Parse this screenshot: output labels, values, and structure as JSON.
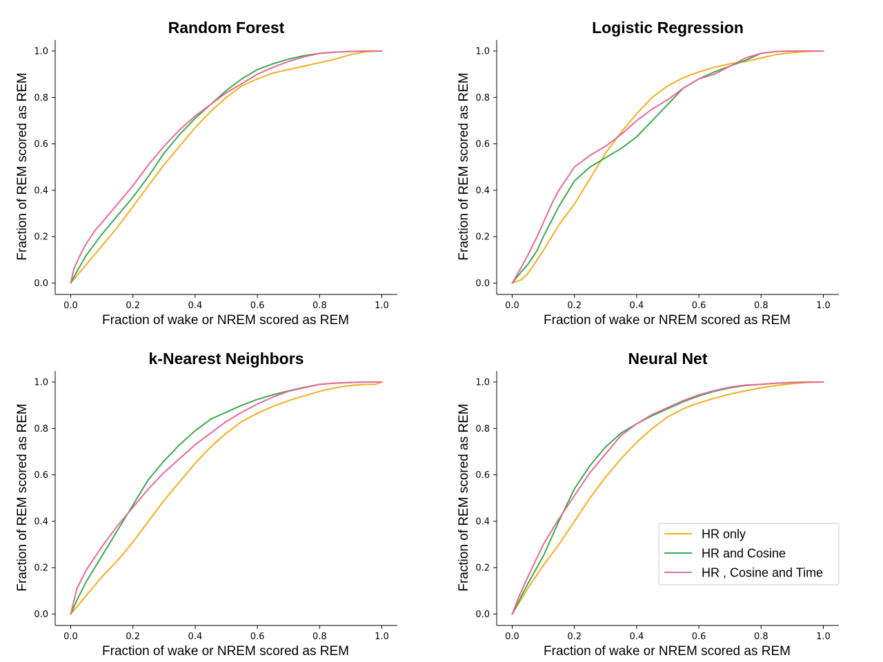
{
  "figure": {
    "background": "#ffffff"
  },
  "colors": {
    "HR only": "#f5ad1b",
    "HR and Cosine": "#3aaa48",
    "HR , Cosine and Time": "#e8689a"
  },
  "legend": {
    "placement": "lower-right of Neural Net panel",
    "entries": [
      "HR only",
      "HR and Cosine",
      "HR , Cosine and Time"
    ]
  },
  "chart_data": [
    {
      "type": "line",
      "title": "Random Forest",
      "xlabel": "Fraction of wake or NREM scored as REM",
      "ylabel": "Fraction of REM scored as REM",
      "xlim": [
        0,
        1
      ],
      "ylim": [
        0,
        1
      ],
      "xticks": [
        "0.0",
        "0.2",
        "0.4",
        "0.6",
        "0.8",
        "1.0"
      ],
      "yticks": [
        "0.0",
        "0.2",
        "0.4",
        "0.6",
        "0.8",
        "1.0"
      ],
      "grid": false,
      "series": [
        {
          "name": "HR only",
          "x": [
            0,
            0.05,
            0.1,
            0.15,
            0.2,
            0.25,
            0.3,
            0.35,
            0.4,
            0.45,
            0.5,
            0.55,
            0.6,
            0.65,
            0.7,
            0.75,
            0.8,
            0.85,
            0.9,
            0.95,
            1.0
          ],
          "y": [
            0,
            0.08,
            0.16,
            0.24,
            0.33,
            0.42,
            0.51,
            0.59,
            0.67,
            0.74,
            0.8,
            0.85,
            0.88,
            0.905,
            0.92,
            0.935,
            0.95,
            0.965,
            0.985,
            0.997,
            1.0
          ]
        },
        {
          "name": "HR and Cosine",
          "x": [
            0,
            0.02,
            0.05,
            0.1,
            0.15,
            0.2,
            0.25,
            0.3,
            0.35,
            0.4,
            0.45,
            0.5,
            0.55,
            0.6,
            0.65,
            0.7,
            0.75,
            0.8,
            0.85,
            0.9,
            0.95,
            1.0
          ],
          "y": [
            0,
            0.05,
            0.12,
            0.21,
            0.29,
            0.37,
            0.46,
            0.56,
            0.64,
            0.71,
            0.77,
            0.83,
            0.88,
            0.92,
            0.945,
            0.965,
            0.98,
            0.99,
            0.995,
            0.998,
            1.0,
            1.0
          ]
        },
        {
          "name": "HR , Cosine and Time",
          "x": [
            0,
            0.01,
            0.03,
            0.05,
            0.08,
            0.1,
            0.15,
            0.2,
            0.25,
            0.3,
            0.35,
            0.4,
            0.45,
            0.5,
            0.55,
            0.6,
            0.65,
            0.7,
            0.75,
            0.8,
            0.85,
            0.9,
            0.95,
            1.0
          ],
          "y": [
            0,
            0.06,
            0.12,
            0.17,
            0.23,
            0.26,
            0.34,
            0.42,
            0.51,
            0.59,
            0.66,
            0.72,
            0.77,
            0.82,
            0.86,
            0.9,
            0.93,
            0.955,
            0.975,
            0.99,
            0.995,
            0.998,
            1.0,
            1.0
          ]
        }
      ]
    },
    {
      "type": "line",
      "title": "Logistic Regression",
      "xlabel": "Fraction of wake or NREM scored as REM",
      "ylabel": "Fraction of REM scored as REM",
      "xlim": [
        0,
        1
      ],
      "ylim": [
        0,
        1
      ],
      "xticks": [
        "0.0",
        "0.2",
        "0.4",
        "0.6",
        "0.8",
        "1.0"
      ],
      "yticks": [
        "0.0",
        "0.2",
        "0.4",
        "0.6",
        "0.8",
        "1.0"
      ],
      "grid": false,
      "series": [
        {
          "name": "HR only",
          "x": [
            0,
            0.03,
            0.05,
            0.08,
            0.1,
            0.15,
            0.2,
            0.25,
            0.3,
            0.35,
            0.4,
            0.45,
            0.5,
            0.55,
            0.6,
            0.65,
            0.7,
            0.75,
            0.8,
            0.85,
            0.9,
            0.95,
            1.0
          ],
          "y": [
            0,
            0.015,
            0.04,
            0.1,
            0.14,
            0.25,
            0.34,
            0.45,
            0.56,
            0.65,
            0.73,
            0.8,
            0.85,
            0.885,
            0.91,
            0.93,
            0.945,
            0.955,
            0.97,
            0.985,
            0.993,
            0.998,
            1.0
          ]
        },
        {
          "name": "HR and Cosine",
          "x": [
            0,
            0.03,
            0.05,
            0.08,
            0.1,
            0.15,
            0.2,
            0.25,
            0.3,
            0.35,
            0.4,
            0.45,
            0.5,
            0.55,
            0.6,
            0.65,
            0.7,
            0.75,
            0.8,
            0.85,
            0.9,
            0.95,
            1.0
          ],
          "y": [
            0,
            0.05,
            0.08,
            0.14,
            0.2,
            0.33,
            0.44,
            0.5,
            0.54,
            0.58,
            0.63,
            0.7,
            0.77,
            0.84,
            0.88,
            0.91,
            0.935,
            0.96,
            0.99,
            0.998,
            1.0,
            1.0,
            1.0
          ]
        },
        {
          "name": "HR , Cosine and Time",
          "x": [
            0,
            0.03,
            0.05,
            0.08,
            0.1,
            0.13,
            0.15,
            0.2,
            0.25,
            0.3,
            0.35,
            0.4,
            0.45,
            0.5,
            0.55,
            0.6,
            0.65,
            0.7,
            0.75,
            0.8,
            0.85,
            0.9,
            0.95,
            1.0
          ],
          "y": [
            0,
            0.07,
            0.12,
            0.2,
            0.26,
            0.35,
            0.4,
            0.5,
            0.55,
            0.59,
            0.64,
            0.7,
            0.75,
            0.79,
            0.84,
            0.88,
            0.9,
            0.935,
            0.97,
            0.99,
            0.998,
            1.0,
            1.0,
            1.0
          ]
        }
      ]
    },
    {
      "type": "line",
      "title": "k-Nearest Neighbors",
      "xlabel": "Fraction of wake or NREM scored as REM",
      "ylabel": "Fraction of REM scored as REM",
      "xlim": [
        0,
        1
      ],
      "ylim": [
        0,
        1
      ],
      "xticks": [
        "0.0",
        "0.2",
        "0.4",
        "0.6",
        "0.8",
        "1.0"
      ],
      "yticks": [
        "0.0",
        "0.2",
        "0.4",
        "0.6",
        "0.8",
        "1.0"
      ],
      "grid": false,
      "series": [
        {
          "name": "HR only",
          "x": [
            0,
            0.05,
            0.1,
            0.15,
            0.2,
            0.25,
            0.3,
            0.35,
            0.4,
            0.45,
            0.5,
            0.55,
            0.6,
            0.65,
            0.7,
            0.75,
            0.8,
            0.85,
            0.9,
            0.95,
            0.98,
            1.0
          ],
          "y": [
            0,
            0.08,
            0.16,
            0.23,
            0.31,
            0.4,
            0.49,
            0.57,
            0.65,
            0.72,
            0.78,
            0.83,
            0.865,
            0.895,
            0.92,
            0.94,
            0.96,
            0.975,
            0.985,
            0.99,
            0.99,
            1.0
          ]
        },
        {
          "name": "HR and Cosine",
          "x": [
            0,
            0.02,
            0.05,
            0.1,
            0.15,
            0.2,
            0.25,
            0.3,
            0.35,
            0.4,
            0.45,
            0.5,
            0.55,
            0.6,
            0.65,
            0.7,
            0.75,
            0.8,
            0.85,
            0.9,
            0.95,
            1.0
          ],
          "y": [
            0,
            0.06,
            0.14,
            0.25,
            0.36,
            0.47,
            0.58,
            0.66,
            0.73,
            0.79,
            0.84,
            0.87,
            0.9,
            0.925,
            0.945,
            0.962,
            0.977,
            0.99,
            0.995,
            0.998,
            1.0,
            1.0
          ]
        },
        {
          "name": "HR , Cosine and Time",
          "x": [
            0,
            0.02,
            0.05,
            0.08,
            0.1,
            0.15,
            0.2,
            0.25,
            0.3,
            0.35,
            0.4,
            0.45,
            0.5,
            0.55,
            0.6,
            0.65,
            0.7,
            0.75,
            0.8,
            0.85,
            0.9,
            0.95,
            1.0
          ],
          "y": [
            0,
            0.11,
            0.19,
            0.25,
            0.29,
            0.38,
            0.46,
            0.54,
            0.61,
            0.67,
            0.73,
            0.78,
            0.83,
            0.87,
            0.905,
            0.935,
            0.96,
            0.975,
            0.99,
            0.995,
            0.998,
            1.0,
            1.0
          ]
        }
      ]
    },
    {
      "type": "line",
      "title": "Neural Net",
      "xlabel": "Fraction of wake or NREM scored as REM",
      "ylabel": "Fraction of REM scored as REM",
      "xlim": [
        0,
        1
      ],
      "ylim": [
        0,
        1
      ],
      "xticks": [
        "0.0",
        "0.2",
        "0.4",
        "0.6",
        "0.8",
        "1.0"
      ],
      "yticks": [
        "0.0",
        "0.2",
        "0.4",
        "0.6",
        "0.8",
        "1.0"
      ],
      "grid": false,
      "legend": "lower right",
      "series": [
        {
          "name": "HR only",
          "x": [
            0,
            0.05,
            0.1,
            0.15,
            0.2,
            0.25,
            0.3,
            0.35,
            0.4,
            0.45,
            0.5,
            0.55,
            0.6,
            0.65,
            0.7,
            0.75,
            0.8,
            0.85,
            0.9,
            0.95,
            1.0
          ],
          "y": [
            0,
            0.11,
            0.21,
            0.3,
            0.4,
            0.5,
            0.59,
            0.67,
            0.74,
            0.8,
            0.85,
            0.885,
            0.91,
            0.93,
            0.948,
            0.962,
            0.975,
            0.985,
            0.993,
            0.998,
            1.0
          ]
        },
        {
          "name": "HR and Cosine",
          "x": [
            0,
            0.05,
            0.1,
            0.15,
            0.2,
            0.25,
            0.3,
            0.35,
            0.4,
            0.45,
            0.5,
            0.55,
            0.6,
            0.65,
            0.7,
            0.75,
            0.8,
            0.85,
            0.9,
            0.95,
            1.0
          ],
          "y": [
            0,
            0.13,
            0.25,
            0.4,
            0.54,
            0.64,
            0.72,
            0.78,
            0.82,
            0.855,
            0.885,
            0.915,
            0.94,
            0.96,
            0.975,
            0.985,
            0.99,
            0.995,
            0.998,
            1.0,
            1.0
          ]
        },
        {
          "name": "HR , Cosine and Time",
          "x": [
            0,
            0.02,
            0.05,
            0.1,
            0.15,
            0.2,
            0.25,
            0.3,
            0.35,
            0.4,
            0.45,
            0.5,
            0.55,
            0.6,
            0.65,
            0.7,
            0.75,
            0.8,
            0.85,
            0.9,
            0.95,
            1.0
          ],
          "y": [
            0,
            0.07,
            0.16,
            0.3,
            0.41,
            0.51,
            0.61,
            0.69,
            0.77,
            0.82,
            0.86,
            0.89,
            0.92,
            0.945,
            0.963,
            0.978,
            0.987,
            0.99,
            0.995,
            0.998,
            1.0,
            1.0
          ]
        }
      ]
    }
  ]
}
